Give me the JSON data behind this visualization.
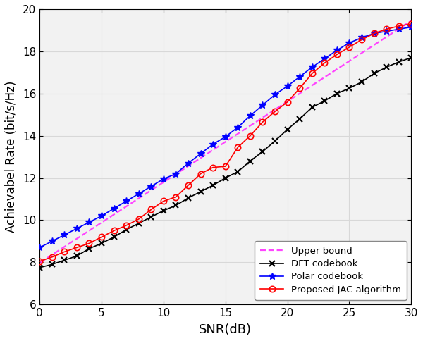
{
  "title": "",
  "xlabel": "SNR(dB)",
  "ylabel": "Achievabel Rate (bit/s/Hz)",
  "xlim": [
    0,
    30
  ],
  "ylim": [
    6,
    20
  ],
  "yticks": [
    6,
    8,
    10,
    12,
    14,
    16,
    18,
    20
  ],
  "xticks": [
    0,
    5,
    10,
    15,
    20,
    25,
    30
  ],
  "snr": [
    0,
    1,
    2,
    3,
    4,
    5,
    6,
    7,
    8,
    9,
    10,
    11,
    12,
    13,
    14,
    15,
    16,
    17,
    18,
    19,
    20,
    21,
    22,
    23,
    24,
    25,
    26,
    27,
    28,
    29,
    30
  ],
  "proposed_jac": [
    8.05,
    8.25,
    8.5,
    8.7,
    8.9,
    9.2,
    9.5,
    9.75,
    10.05,
    10.5,
    10.9,
    11.1,
    11.65,
    12.2,
    12.5,
    12.55,
    13.45,
    14.0,
    14.65,
    15.15,
    15.6,
    16.25,
    16.95,
    17.45,
    17.85,
    18.2,
    18.55,
    18.85,
    19.05,
    19.2,
    19.3
  ],
  "polar": [
    8.7,
    9.0,
    9.3,
    9.6,
    9.9,
    10.2,
    10.55,
    10.9,
    11.25,
    11.6,
    11.95,
    12.2,
    12.7,
    13.15,
    13.6,
    13.95,
    14.4,
    14.95,
    15.45,
    15.95,
    16.35,
    16.8,
    17.25,
    17.65,
    18.05,
    18.4,
    18.65,
    18.85,
    18.95,
    19.05,
    19.15
  ],
  "dft": [
    7.75,
    7.9,
    8.1,
    8.3,
    8.65,
    8.9,
    9.2,
    9.55,
    9.85,
    10.15,
    10.45,
    10.7,
    11.05,
    11.35,
    11.65,
    12.0,
    12.3,
    12.8,
    13.25,
    13.75,
    14.3,
    14.8,
    15.35,
    15.65,
    16.0,
    16.25,
    16.55,
    16.95,
    17.25,
    17.5,
    17.7
  ],
  "upper_snr": [
    -0.5,
    30
  ],
  "upper_vals": [
    7.78,
    19.45
  ],
  "proposed_color": "#ff0000",
  "polar_color": "#0000ff",
  "dft_color": "#000000",
  "upper_color": "#ff44ff",
  "legend_labels": [
    "Proposed JAC algorithm",
    "Polar codebook",
    "DFT codebook",
    "Upper bound"
  ],
  "grid_color": "#d8d8d8",
  "background_color": "#f2f2f2",
  "figure_facecolor": "#ffffff"
}
